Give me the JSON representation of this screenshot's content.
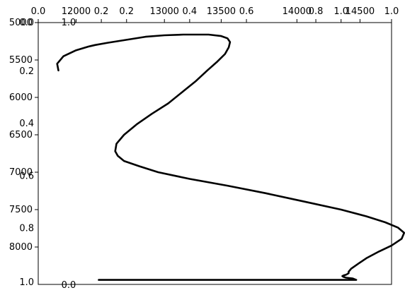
{
  "chart_data": {
    "type": "line",
    "title": "",
    "xlabel": "",
    "ylabel": "",
    "grid": false,
    "xlim": [
      11500,
      14300
    ],
    "ylim": [
      8500,
      5000
    ],
    "top_ticks": {
      "labels": [
        "0.0",
        "12000",
        "0.2",
        "0.2",
        "13000",
        "0.4",
        "13500",
        "0.6",
        "14000",
        "0.8",
        "1.0",
        "14500",
        "1.0"
      ],
      "values": [
        11500,
        11800,
        12000,
        12200,
        12500,
        12700,
        12950,
        13150,
        13550,
        13700,
        13900,
        14050,
        14300
      ]
    },
    "left_ticks": {
      "labels": [
        "5000",
        "5500",
        "6000",
        "6500",
        "7000",
        "7500",
        "8000"
      ],
      "values": [
        5000,
        5500,
        6000,
        6500,
        7000,
        7500,
        8000
      ]
    },
    "overlay_ticks": {
      "labels": [
        "0.0",
        "0.2",
        "0.4",
        "0.6",
        "0.8",
        "1.0"
      ],
      "values": [
        5000,
        5650,
        6350,
        7050,
        7750,
        8470
      ]
    },
    "stray_labels": [
      "1.0",
      "0.0"
    ],
    "series": [
      {
        "x": [
          11660,
          11650,
          11700,
          11800,
          11900,
          11950,
          12050,
          12200,
          12350,
          12500,
          12650,
          12850,
          12950,
          13000,
          13020,
          13010,
          12980,
          12920,
          12840,
          12750,
          12640,
          12530,
          12400,
          12280,
          12180,
          12120,
          12110,
          12130,
          12180,
          12300,
          12450,
          12700,
          13000,
          13300,
          13600,
          13900,
          14100,
          14250,
          14350,
          14400,
          14380,
          14300,
          14200,
          14100,
          14030,
          13980,
          13960,
          13960,
          13950,
          13940,
          13920,
          13910,
          13920,
          13940,
          13990,
          14020,
          13980,
          13880,
          13790,
          13700,
          13560,
          13400,
          13300,
          13200,
          13120,
          12200,
          12020,
          11980,
          11990,
          12020,
          12060,
          12100
        ],
        "y": [
          5640,
          5550,
          5450,
          5370,
          5320,
          5300,
          5270,
          5230,
          5190,
          5170,
          5160,
          5160,
          5180,
          5210,
          5260,
          5330,
          5420,
          5520,
          5640,
          5780,
          5930,
          6080,
          6220,
          6360,
          6500,
          6620,
          6720,
          6780,
          6850,
          6920,
          7000,
          7090,
          7180,
          7280,
          7390,
          7500,
          7590,
          7670,
          7740,
          7810,
          7890,
          7980,
          8060,
          8150,
          8230,
          8290,
          8330,
          8350,
          8360,
          8370,
          8380,
          8390,
          8400,
          8410,
          8420,
          8440,
          8440,
          8440,
          8440,
          8440,
          8440,
          8440,
          8440,
          8440,
          8440,
          8440,
          8440,
          8440,
          8440,
          8440,
          8440,
          8440
        ]
      }
    ]
  }
}
